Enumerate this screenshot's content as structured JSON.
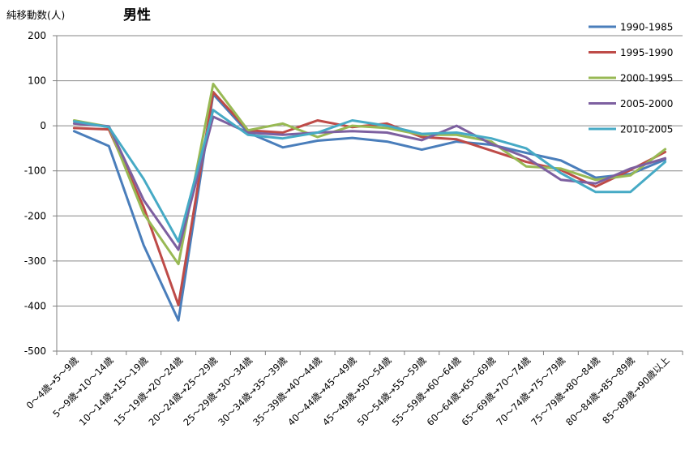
{
  "chart_data": {
    "type": "line",
    "title": "男性",
    "ylabel": "純移動数(人)",
    "xlabel": "",
    "ylim": [
      -500,
      200
    ],
    "y_ticks": [
      200,
      100,
      0,
      -100,
      -200,
      -300,
      -400,
      -500
    ],
    "grid": "horizontal",
    "legend_position": "top-right",
    "categories": [
      "0〜4歳→5〜9歳",
      "5〜9歳→10〜14歳",
      "10〜14歳→15〜19歳",
      "15〜19歳→20〜24歳",
      "20〜24歳→25〜29歳",
      "25〜29歳→30〜34歳",
      "30〜34歳→35〜39歳",
      "35〜39歳→40〜44歳",
      "40〜44歳→45〜49歳",
      "45〜49歳→50〜54歳",
      "50〜54歳→55〜59歳",
      "55〜59歳→60〜64歳",
      "60〜64歳→65〜69歳",
      "65〜69歳→70〜74歳",
      "70〜74歳→75〜79歳",
      "75〜79歳→80〜84歳",
      "80〜84歳→85〜89歳",
      "85〜89歳→90歳以上"
    ],
    "series": [
      {
        "name": "1990-1985",
        "color": "#4a7ebb",
        "values": [
          -12,
          -45,
          -265,
          -432,
          70,
          -15,
          -48,
          -33,
          -27,
          -35,
          -53,
          -35,
          -42,
          -60,
          -77,
          -115,
          -107,
          -75
        ]
      },
      {
        "name": "1995-1990",
        "color": "#be4b48",
        "values": [
          -5,
          -8,
          -180,
          -398,
          75,
          -10,
          -15,
          12,
          -3,
          5,
          -25,
          -30,
          -55,
          -80,
          -98,
          -135,
          -98,
          -58
        ]
      },
      {
        "name": "2000-1995",
        "color": "#98b954",
        "values": [
          12,
          -2,
          -195,
          -307,
          93,
          -10,
          5,
          -25,
          0,
          -5,
          -20,
          -20,
          -35,
          -90,
          -95,
          -120,
          -110,
          -52
        ]
      },
      {
        "name": "2005-2000",
        "color": "#7d60a0",
        "values": [
          5,
          -1,
          -165,
          -275,
          20,
          -15,
          -20,
          -15,
          -12,
          -15,
          -32,
          0,
          -40,
          -70,
          -120,
          -128,
          -95,
          -72
        ]
      },
      {
        "name": "2010-2005",
        "color": "#46aac5",
        "values": [
          10,
          -3,
          -118,
          -257,
          35,
          -20,
          -28,
          -15,
          12,
          0,
          -18,
          -15,
          -28,
          -50,
          -105,
          -147,
          -147,
          -80
        ]
      }
    ]
  }
}
